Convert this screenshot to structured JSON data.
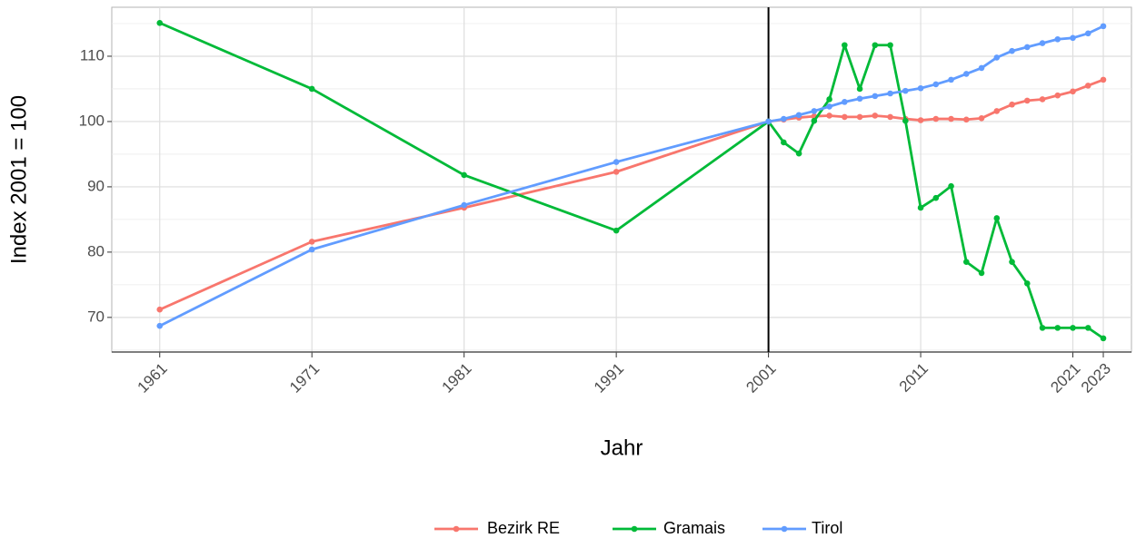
{
  "chart_data": {
    "type": "line",
    "xlabel": "Jahr",
    "ylabel": "Index 2001 = 100",
    "x": [
      1961,
      1971,
      1981,
      1991,
      2001,
      2002,
      2003,
      2004,
      2005,
      2006,
      2007,
      2008,
      2009,
      2010,
      2011,
      2012,
      2013,
      2014,
      2015,
      2016,
      2017,
      2018,
      2019,
      2020,
      2021,
      2022,
      2023
    ],
    "series": [
      {
        "name": "Bezirk RE",
        "color": "#F8766D",
        "values": [
          71.2,
          81.6,
          86.8,
          92.3,
          100,
          100.3,
          100.6,
          100.8,
          100.9,
          100.7,
          100.7,
          100.9,
          100.7,
          100.4,
          100.2,
          100.4,
          100.4,
          100.3,
          100.5,
          101.6,
          102.6,
          103.2,
          103.4,
          104.0,
          104.6,
          105.5,
          106.4
        ]
      },
      {
        "name": "Gramais",
        "color": "#00BA38",
        "values": [
          115.1,
          105.0,
          91.8,
          83.3,
          100,
          96.8,
          95.1,
          100.1,
          103.4,
          111.7,
          105.0,
          111.7,
          111.7,
          100.1,
          86.8,
          88.3,
          90.1,
          78.5,
          76.8,
          85.2,
          78.5,
          75.2,
          68.4,
          68.4,
          68.4,
          68.4,
          66.8
        ]
      },
      {
        "name": "Tirol",
        "color": "#619CFF",
        "values": [
          68.7,
          80.4,
          87.2,
          93.8,
          100,
          100.4,
          101.0,
          101.6,
          102.3,
          103.0,
          103.5,
          103.9,
          104.3,
          104.7,
          105.1,
          105.7,
          106.4,
          107.3,
          108.2,
          109.8,
          110.8,
          111.4,
          112.0,
          112.6,
          112.8,
          113.5,
          114.6
        ]
      }
    ],
    "xlim": [
      1957.85,
      2024.85
    ],
    "xticks": [
      1961,
      1971,
      1981,
      1991,
      2001,
      2011,
      2021,
      2023
    ],
    "ylim": [
      64.7,
      117.5
    ],
    "yticks": [
      70,
      80,
      90,
      100,
      110
    ],
    "yminor_ticks": [
      65,
      75,
      85,
      95,
      105,
      115
    ],
    "vline": 2001,
    "vline_color": "#000000",
    "grid": true,
    "legend": "bottom"
  }
}
